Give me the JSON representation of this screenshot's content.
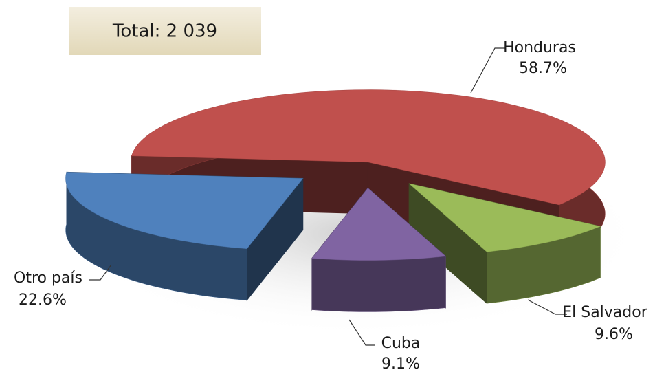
{
  "chart_data": {
    "type": "pie",
    "annotation": "Total: 2 039",
    "categories": [
      "Honduras",
      "El Salvador",
      "Cuba",
      "Otro país"
    ],
    "values": [
      58.7,
      9.6,
      9.1,
      22.6
    ],
    "value_labels": [
      "58.7%",
      "9.6%",
      "9.1%",
      "22.6%"
    ],
    "colors": [
      "#c0504d",
      "#9bbb59",
      "#8064a2",
      "#4f81bd"
    ]
  }
}
